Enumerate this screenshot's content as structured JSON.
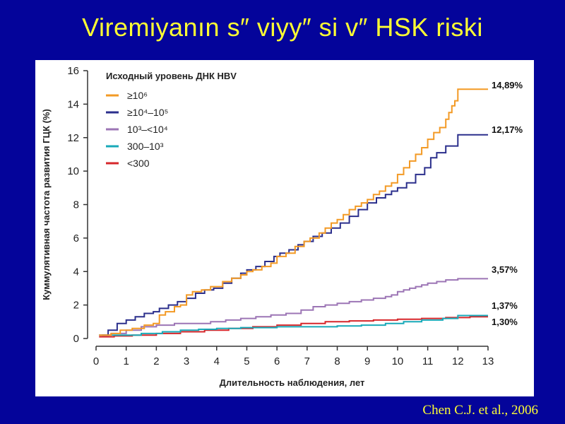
{
  "slide": {
    "title": "Viremiyanın s″ viyy″ si v″  HSK riski",
    "citation": "Chen C.J. et al., 2006"
  },
  "colors": {
    "background": "#04049a",
    "title": "#ffff33",
    "panel": "#ffffff"
  },
  "chart_data": {
    "type": "line",
    "title": "",
    "xlabel": "Длительность наблюдения, лет",
    "ylabel": "Куммулятивная частота развития ГЦК (%)",
    "xlim": [
      0,
      13
    ],
    "ylim": [
      0,
      16
    ],
    "x_ticks": [
      0,
      1,
      2,
      3,
      4,
      5,
      6,
      7,
      8,
      9,
      10,
      11,
      12,
      13
    ],
    "y_ticks": [
      0,
      2,
      4,
      6,
      8,
      10,
      12,
      14,
      16
    ],
    "grid": false,
    "legend": {
      "title": "Исходный уровень ДНК HBV",
      "position": "top-left"
    },
    "series": [
      {
        "name": "≥10⁶",
        "color": "#f39a25",
        "end_label": "14,89%",
        "x": [
          0.1,
          0.5,
          0.8,
          1.2,
          1.6,
          1.9,
          2.1,
          2.3,
          2.6,
          2.8,
          3.0,
          3.2,
          3.5,
          3.8,
          4.2,
          4.5,
          4.8,
          5.0,
          5.2,
          5.5,
          5.8,
          6.0,
          6.3,
          6.6,
          6.9,
          7.1,
          7.4,
          7.6,
          7.8,
          8.0,
          8.2,
          8.4,
          8.6,
          8.8,
          9.0,
          9.2,
          9.4,
          9.6,
          9.8,
          10.0,
          10.2,
          10.4,
          10.6,
          10.8,
          11.0,
          11.2,
          11.4,
          11.6,
          11.7,
          11.8,
          11.9,
          12.0,
          13.0
        ],
        "y": [
          0.2,
          0.3,
          0.5,
          0.6,
          0.8,
          0.9,
          1.4,
          1.6,
          1.9,
          2.0,
          2.6,
          2.8,
          2.9,
          3.1,
          3.4,
          3.6,
          3.8,
          4.0,
          4.1,
          4.3,
          4.5,
          4.9,
          5.1,
          5.5,
          5.8,
          6.0,
          6.3,
          6.6,
          6.9,
          7.1,
          7.4,
          7.7,
          7.9,
          8.1,
          8.3,
          8.6,
          8.8,
          9.1,
          9.3,
          9.8,
          10.2,
          10.6,
          11.0,
          11.4,
          11.9,
          12.3,
          12.6,
          13.1,
          13.5,
          13.9,
          14.2,
          14.89,
          14.89
        ]
      },
      {
        "name": "≥10⁴–10⁵",
        "color": "#2b2f8c",
        "end_label": "12,17%",
        "x": [
          0.2,
          0.4,
          0.7,
          1.0,
          1.3,
          1.6,
          1.9,
          2.1,
          2.4,
          2.7,
          3.0,
          3.3,
          3.6,
          3.9,
          4.2,
          4.5,
          4.8,
          5.0,
          5.3,
          5.6,
          5.9,
          6.1,
          6.4,
          6.7,
          6.9,
          7.2,
          7.5,
          7.8,
          8.1,
          8.4,
          8.7,
          9.0,
          9.3,
          9.6,
          9.8,
          10.0,
          10.3,
          10.6,
          10.9,
          11.1,
          11.3,
          11.6,
          12.0,
          13.0
        ],
        "y": [
          0.2,
          0.5,
          0.9,
          1.1,
          1.3,
          1.5,
          1.6,
          1.8,
          2.0,
          2.2,
          2.4,
          2.7,
          2.9,
          3.0,
          3.3,
          3.6,
          3.9,
          4.1,
          4.3,
          4.6,
          4.9,
          5.1,
          5.3,
          5.6,
          5.8,
          6.1,
          6.3,
          6.6,
          6.9,
          7.3,
          7.7,
          8.1,
          8.4,
          8.6,
          8.8,
          9.0,
          9.3,
          9.8,
          10.2,
          10.8,
          11.1,
          11.5,
          12.17,
          12.17
        ]
      },
      {
        "name": "10³–<10⁴",
        "color": "#9c75b5",
        "end_label": "3,57%",
        "x": [
          0.1,
          0.5,
          1.0,
          1.5,
          2.0,
          2.6,
          3.2,
          3.8,
          4.3,
          4.8,
          5.3,
          5.8,
          6.3,
          6.8,
          7.2,
          7.6,
          8.0,
          8.4,
          8.8,
          9.2,
          9.6,
          9.8,
          10.0,
          10.2,
          10.4,
          10.6,
          10.8,
          11.0,
          11.3,
          11.6,
          12.0,
          13.0
        ],
        "y": [
          0.2,
          0.3,
          0.5,
          0.7,
          0.8,
          0.9,
          0.9,
          1.0,
          1.1,
          1.2,
          1.3,
          1.4,
          1.5,
          1.7,
          1.9,
          2.0,
          2.1,
          2.2,
          2.3,
          2.4,
          2.5,
          2.6,
          2.8,
          2.9,
          3.0,
          3.1,
          3.2,
          3.3,
          3.4,
          3.5,
          3.57,
          3.57
        ]
      },
      {
        "name": "300–10³",
        "color": "#19a9b8",
        "end_label": "1,37%",
        "x": [
          0.1,
          0.5,
          1.5,
          2.2,
          2.8,
          3.4,
          4.0,
          4.8,
          5.5,
          6.0,
          7.0,
          8.0,
          8.8,
          9.6,
          10.2,
          10.8,
          11.5,
          12.0,
          13.0
        ],
        "y": [
          0.2,
          0.2,
          0.3,
          0.4,
          0.5,
          0.55,
          0.6,
          0.65,
          0.65,
          0.7,
          0.7,
          0.75,
          0.8,
          0.9,
          1.0,
          1.1,
          1.2,
          1.37,
          1.37
        ]
      },
      {
        "name": "<300",
        "color": "#d6272b",
        "end_label": "1,30%",
        "x": [
          0.1,
          0.6,
          1.2,
          2.0,
          2.8,
          3.6,
          4.4,
          5.2,
          6.0,
          6.8,
          7.6,
          8.4,
          9.2,
          10.0,
          10.8,
          11.6,
          12.4,
          13.0
        ],
        "y": [
          0.1,
          0.15,
          0.2,
          0.3,
          0.4,
          0.5,
          0.6,
          0.7,
          0.8,
          0.9,
          1.0,
          1.05,
          1.1,
          1.15,
          1.2,
          1.25,
          1.3,
          1.3
        ]
      }
    ]
  }
}
